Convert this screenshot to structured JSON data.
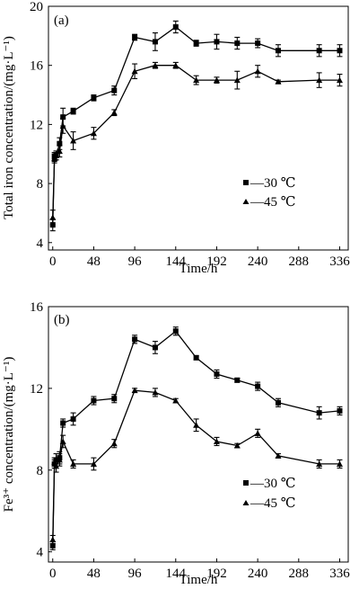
{
  "chart_data": [
    {
      "type": "line",
      "panel_label": "(a)",
      "xlabel": "Time/h",
      "ylabel": "Total iron concentration/(mg·L⁻¹)",
      "xlim": [
        -5,
        346
      ],
      "ylim": [
        3.5,
        20
      ],
      "xticks": [
        0,
        48,
        96,
        144,
        192,
        240,
        288,
        336
      ],
      "yticks": [
        4,
        8,
        12,
        16,
        20
      ],
      "legend_position": "center-right",
      "series": [
        {
          "name": "30 ℃",
          "marker": "square",
          "x": [
            0,
            2,
            4,
            8,
            12,
            24,
            48,
            72,
            96,
            120,
            144,
            168,
            192,
            216,
            240,
            264,
            312,
            336
          ],
          "y": [
            5.2,
            9.8,
            9.9,
            10.7,
            12.5,
            12.9,
            13.8,
            14.3,
            17.9,
            17.6,
            18.6,
            17.5,
            17.6,
            17.5,
            17.5,
            17.0,
            17.0,
            17.0
          ],
          "err": [
            0.4,
            0.3,
            0.3,
            0.4,
            0.6,
            0.2,
            0.2,
            0.3,
            0.2,
            0.6,
            0.4,
            0.2,
            0.5,
            0.4,
            0.3,
            0.4,
            0.4,
            0.4
          ]
        },
        {
          "name": "45 ℃",
          "marker": "triangle",
          "x": [
            0,
            2,
            4,
            8,
            12,
            24,
            48,
            72,
            96,
            120,
            144,
            168,
            192,
            216,
            240,
            264,
            312,
            336
          ],
          "y": [
            5.7,
            9.7,
            9.9,
            10.2,
            11.9,
            10.9,
            11.4,
            12.8,
            15.6,
            16.0,
            16.0,
            15.0,
            15.0,
            15.0,
            15.6,
            14.9,
            15.0,
            15.0
          ],
          "err": [
            0.5,
            0.3,
            0.3,
            0.4,
            0.5,
            0.6,
            0.4,
            0.2,
            0.5,
            0.2,
            0.2,
            0.3,
            0.2,
            0.6,
            0.4,
            0.1,
            0.5,
            0.4
          ]
        }
      ]
    },
    {
      "type": "line",
      "panel_label": "(b)",
      "xlabel": "Time/h",
      "ylabel": "Fe³⁺ concentration/(mg·L⁻¹)",
      "xlim": [
        -5,
        346
      ],
      "ylim": [
        3.5,
        16
      ],
      "xticks": [
        0,
        48,
        96,
        144,
        192,
        240,
        288,
        336
      ],
      "yticks": [
        4,
        8,
        12,
        16
      ],
      "legend_position": "center-right",
      "series": [
        {
          "name": "30 ℃",
          "marker": "square",
          "x": [
            0,
            2,
            4,
            8,
            12,
            24,
            48,
            72,
            96,
            120,
            144,
            168,
            192,
            216,
            240,
            264,
            312,
            336
          ],
          "y": [
            4.3,
            8.3,
            8.5,
            8.6,
            10.3,
            10.5,
            11.4,
            11.5,
            14.4,
            14.0,
            14.8,
            13.5,
            12.7,
            12.4,
            12.1,
            11.3,
            10.8,
            10.9
          ],
          "err": [
            0.2,
            0.2,
            0.3,
            0.3,
            0.2,
            0.3,
            0.2,
            0.2,
            0.2,
            0.3,
            0.2,
            0.1,
            0.2,
            0.1,
            0.2,
            0.2,
            0.3,
            0.2
          ]
        },
        {
          "name": "45 ℃",
          "marker": "triangle",
          "x": [
            0,
            2,
            4,
            8,
            12,
            24,
            48,
            72,
            96,
            120,
            144,
            168,
            192,
            216,
            240,
            264,
            312,
            336
          ],
          "y": [
            4.6,
            8.4,
            8.2,
            8.5,
            9.4,
            8.3,
            8.3,
            9.3,
            11.9,
            11.8,
            11.4,
            10.2,
            9.4,
            9.2,
            9.8,
            8.7,
            8.3,
            8.3
          ],
          "err": [
            0.2,
            0.2,
            0.3,
            0.3,
            0.3,
            0.2,
            0.3,
            0.2,
            0.1,
            0.2,
            0.1,
            0.3,
            0.2,
            0.1,
            0.2,
            0.1,
            0.2,
            0.2
          ]
        }
      ]
    }
  ],
  "legend_prefix": "—"
}
